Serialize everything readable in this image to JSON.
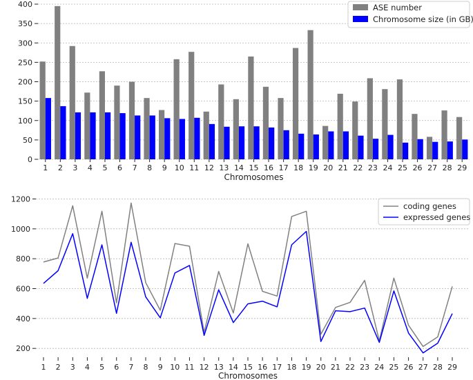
{
  "chart_data": [
    {
      "type": "bar",
      "xlabel": "Chromosomes",
      "ylabel": "",
      "ylim": [
        0,
        400
      ],
      "yticks": [
        0,
        50,
        100,
        150,
        200,
        250,
        300,
        350,
        400
      ],
      "grid": true,
      "legend_position": "top-right",
      "categories": [
        "1",
        "2",
        "3",
        "4",
        "5",
        "6",
        "7",
        "8",
        "9",
        "10",
        "11",
        "12",
        "13",
        "14",
        "15",
        "16",
        "17",
        "18",
        "19",
        "20",
        "21",
        "22",
        "23",
        "24",
        "25",
        "26",
        "27",
        "28",
        "29"
      ],
      "series": [
        {
          "name": "ASE number",
          "color": "#808080",
          "values": [
            252,
            395,
            292,
            172,
            227,
            190,
            200,
            158,
            127,
            258,
            277,
            123,
            193,
            155,
            265,
            187,
            158,
            287,
            333,
            86,
            169,
            149,
            209,
            181,
            206,
            117,
            58,
            126,
            109
          ]
        },
        {
          "name": "Chromosome size (in GB)",
          "color": "#0000ff",
          "values": [
            158,
            137,
            121,
            121,
            121,
            119,
            113,
            113,
            106,
            104,
            107,
            91,
            84,
            85,
            85,
            82,
            75,
            66,
            64,
            72,
            72,
            61,
            53,
            63,
            43,
            52,
            45,
            46,
            51
          ]
        }
      ]
    },
    {
      "type": "line",
      "xlabel": "Chromosomes",
      "ylabel": "",
      "ylim": [
        150,
        1230
      ],
      "yticks": [
        200,
        400,
        600,
        800,
        1000,
        1200
      ],
      "grid": true,
      "legend_position": "top-right",
      "categories": [
        "1",
        "2",
        "3",
        "4",
        "5",
        "6",
        "7",
        "8",
        "9",
        "10",
        "11",
        "12",
        "13",
        "14",
        "15",
        "16",
        "17",
        "18",
        "19",
        "20",
        "21",
        "22",
        "23",
        "24",
        "25",
        "26",
        "27",
        "28",
        "29"
      ],
      "series": [
        {
          "name": "coding genes",
          "color": "#808080",
          "values": [
            778,
            805,
            1155,
            670,
            1118,
            505,
            1173,
            640,
            455,
            902,
            884,
            307,
            715,
            437,
            900,
            582,
            550,
            1083,
            1118,
            295,
            474,
            508,
            655,
            250,
            670,
            355,
            213,
            277,
            615
          ]
        },
        {
          "name": "expressed genes",
          "color": "#0000ff",
          "values": [
            635,
            720,
            968,
            535,
            893,
            435,
            910,
            545,
            405,
            705,
            755,
            287,
            592,
            373,
            498,
            516,
            478,
            893,
            983,
            246,
            452,
            446,
            470,
            240,
            585,
            303,
            170,
            235,
            433
          ]
        }
      ]
    }
  ]
}
